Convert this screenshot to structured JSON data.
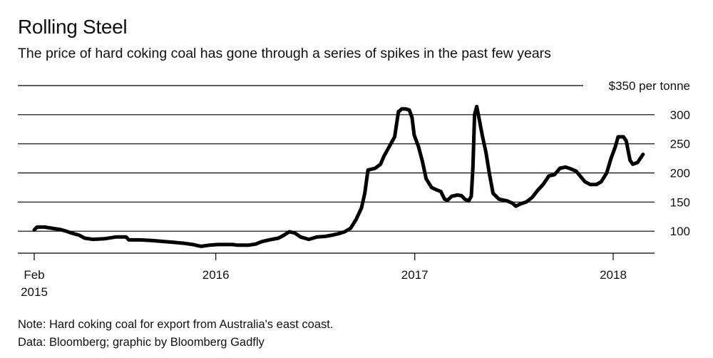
{
  "header": {
    "title": "Rolling Steel",
    "subtitle": "The price of hard coking coal has gone through a series of spikes in the past few years"
  },
  "footer": {
    "note": "Note: Hard coking coal for export from Australia's east coast.",
    "source": "Data: Bloomberg; graphic by Bloomberg Gadfly"
  },
  "chart_data": {
    "type": "line",
    "title": "Rolling Steel",
    "ylabel": "$350 per tonne",
    "xlabel": "",
    "ylim": [
      50,
      350
    ],
    "y_ticks": [
      {
        "value": 350,
        "label": "$350 per tonne"
      },
      {
        "value": 300,
        "label": "300"
      },
      {
        "value": 250,
        "label": "250"
      },
      {
        "value": 200,
        "label": "200"
      },
      {
        "value": 150,
        "label": "150"
      },
      {
        "value": 100,
        "label": "100"
      }
    ],
    "x_ticks": [
      {
        "value": "2015-02-01",
        "label": "Feb",
        "label2": "2015"
      },
      {
        "value": "2016-01-01",
        "label": "2016",
        "label2": ""
      },
      {
        "value": "2017-01-01",
        "label": "2017",
        "label2": ""
      },
      {
        "value": "2018-01-01",
        "label": "2018",
        "label2": ""
      }
    ],
    "grid": true,
    "legend": "none",
    "colors": {
      "line": "#000000",
      "grid": "#000000"
    },
    "series": [
      {
        "name": "",
        "points": [
          [
            "2015-02-01",
            102
          ],
          [
            "2015-02-06",
            107
          ],
          [
            "2015-02-20",
            107
          ],
          [
            "2015-03-06",
            105
          ],
          [
            "2015-03-20",
            103
          ],
          [
            "2015-04-01",
            100
          ],
          [
            "2015-04-10",
            97
          ],
          [
            "2015-04-25",
            93
          ],
          [
            "2015-05-05",
            88
          ],
          [
            "2015-05-20",
            86
          ],
          [
            "2015-06-10",
            87
          ],
          [
            "2015-07-01",
            90
          ],
          [
            "2015-07-20",
            90
          ],
          [
            "2015-07-25",
            85
          ],
          [
            "2015-08-15",
            85
          ],
          [
            "2015-09-05",
            84
          ],
          [
            "2015-10-01",
            82
          ],
          [
            "2015-10-15",
            81
          ],
          [
            "2015-11-05",
            79
          ],
          [
            "2015-11-20",
            77
          ],
          [
            "2015-12-05",
            74
          ],
          [
            "2015-12-20",
            76
          ],
          [
            "2016-01-05",
            77
          ],
          [
            "2016-02-01",
            77
          ],
          [
            "2016-02-10",
            76
          ],
          [
            "2016-03-01",
            76
          ],
          [
            "2016-03-15",
            78
          ],
          [
            "2016-03-25",
            82
          ],
          [
            "2016-04-08",
            85
          ],
          [
            "2016-04-25",
            88
          ],
          [
            "2016-05-05",
            93
          ],
          [
            "2016-05-15",
            99
          ],
          [
            "2016-05-25",
            97
          ],
          [
            "2016-06-05",
            90
          ],
          [
            "2016-06-20",
            86
          ],
          [
            "2016-07-05",
            90
          ],
          [
            "2016-07-20",
            91
          ],
          [
            "2016-08-01",
            93
          ],
          [
            "2016-08-15",
            96
          ],
          [
            "2016-08-25",
            99
          ],
          [
            "2016-09-05",
            105
          ],
          [
            "2016-09-15",
            120
          ],
          [
            "2016-09-25",
            140
          ],
          [
            "2016-10-01",
            165
          ],
          [
            "2016-10-07",
            205
          ],
          [
            "2016-10-20",
            208
          ],
          [
            "2016-10-30",
            215
          ],
          [
            "2016-11-05",
            228
          ],
          [
            "2016-11-12",
            240
          ],
          [
            "2016-11-25",
            262
          ],
          [
            "2016-12-02",
            305
          ],
          [
            "2016-12-08",
            310
          ],
          [
            "2016-12-15",
            310
          ],
          [
            "2016-12-22",
            308
          ],
          [
            "2016-12-27",
            295
          ],
          [
            "2016-12-31",
            265
          ],
          [
            "2017-01-08",
            245
          ],
          [
            "2017-01-15",
            220
          ],
          [
            "2017-01-22",
            190
          ],
          [
            "2017-02-01",
            175
          ],
          [
            "2017-02-10",
            171
          ],
          [
            "2017-02-18",
            168
          ],
          [
            "2017-02-25",
            155
          ],
          [
            "2017-03-02",
            153
          ],
          [
            "2017-03-10",
            160
          ],
          [
            "2017-03-20",
            162
          ],
          [
            "2017-03-28",
            161
          ],
          [
            "2017-04-03",
            155
          ],
          [
            "2017-04-10",
            152
          ],
          [
            "2017-04-15",
            160
          ],
          [
            "2017-04-18",
            210
          ],
          [
            "2017-04-21",
            300
          ],
          [
            "2017-04-25",
            314
          ],
          [
            "2017-04-28",
            300
          ],
          [
            "2017-05-05",
            265
          ],
          [
            "2017-05-12",
            235
          ],
          [
            "2017-05-18",
            200
          ],
          [
            "2017-05-25",
            165
          ],
          [
            "2017-06-05",
            155
          ],
          [
            "2017-06-20",
            152
          ],
          [
            "2017-06-30",
            148
          ],
          [
            "2017-07-06",
            143
          ],
          [
            "2017-07-15",
            147
          ],
          [
            "2017-07-25",
            150
          ],
          [
            "2017-08-05",
            158
          ],
          [
            "2017-08-15",
            170
          ],
          [
            "2017-08-25",
            180
          ],
          [
            "2017-09-05",
            195
          ],
          [
            "2017-09-15",
            197
          ],
          [
            "2017-09-25",
            208
          ],
          [
            "2017-10-05",
            210
          ],
          [
            "2017-10-15",
            207
          ],
          [
            "2017-10-25",
            203
          ],
          [
            "2017-11-01",
            195
          ],
          [
            "2017-11-10",
            185
          ],
          [
            "2017-11-20",
            180
          ],
          [
            "2017-12-01",
            180
          ],
          [
            "2017-12-10",
            185
          ],
          [
            "2017-12-20",
            200
          ],
          [
            "2017-12-28",
            225
          ],
          [
            "2018-01-05",
            245
          ],
          [
            "2018-01-10",
            262
          ],
          [
            "2018-01-20",
            262
          ],
          [
            "2018-01-25",
            255
          ],
          [
            "2018-02-01",
            222
          ],
          [
            "2018-02-06",
            215
          ],
          [
            "2018-02-15",
            218
          ],
          [
            "2018-02-25",
            232
          ]
        ]
      }
    ]
  }
}
